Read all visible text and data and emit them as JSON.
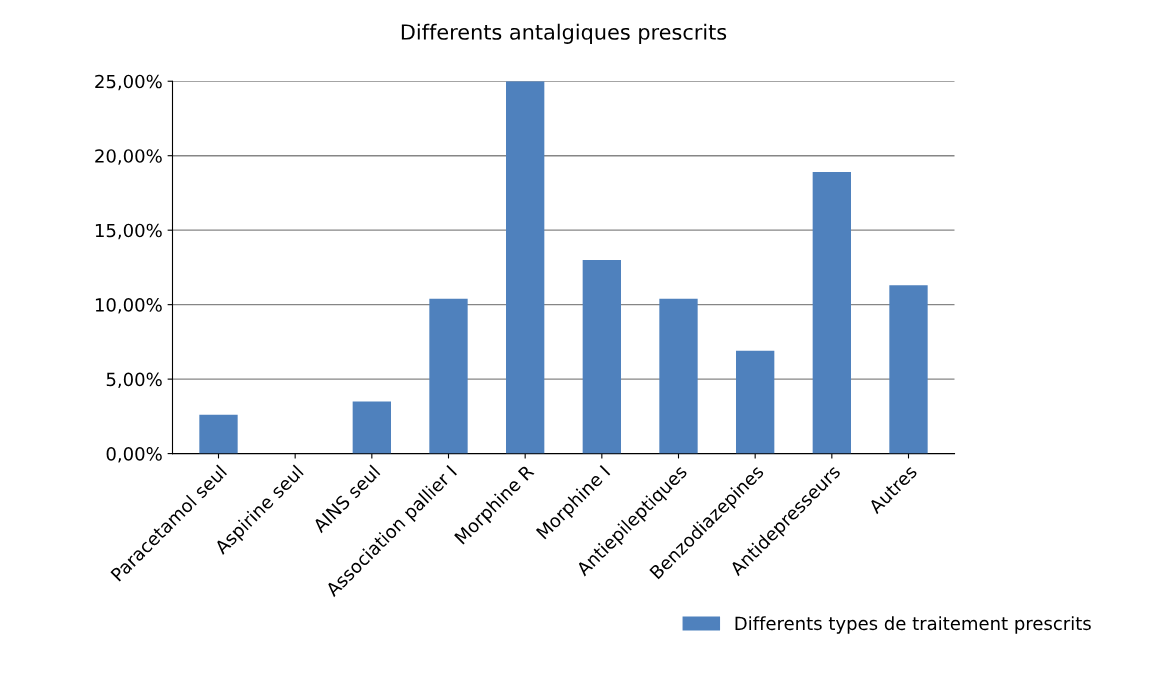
{
  "chart_data": {
    "type": "bar",
    "title": "Differents antalgiques prescrits",
    "categories": [
      "Paracetamol seul",
      "Aspirine seul",
      "AINS seul",
      "Association pallier I",
      "Morphine R",
      "Morphine I",
      "Antiepileptiques",
      "Benzodiazepines",
      "Antidepresseurs",
      "Autres"
    ],
    "series": [
      {
        "name": "Differents types de traitement prescrits",
        "color": "#4f81bd",
        "values": [
          2.6,
          0,
          3.5,
          10.4,
          25,
          13,
          10.4,
          6.9,
          18.9,
          11.3
        ]
      }
    ],
    "ylim": [
      0,
      25
    ],
    "yticks": [
      {
        "value": 0,
        "label": "0,00%"
      },
      {
        "value": 5,
        "label": "5,00%"
      },
      {
        "value": 10,
        "label": "10,00%"
      },
      {
        "value": 15,
        "label": "15,00%"
      },
      {
        "value": 20,
        "label": "20,00%"
      },
      {
        "value": 25,
        "label": "25,00%"
      }
    ],
    "grid": "y",
    "legend": "right"
  }
}
